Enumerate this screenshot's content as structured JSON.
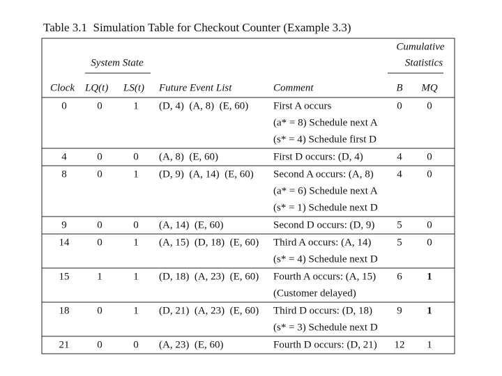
{
  "title": "Table 3.1  Simulation Table for Checkout Counter (Example 3.3)",
  "header": {
    "group_system": "System State",
    "group_cumulative": [
      "Cumulative",
      "Statistics"
    ],
    "columns": [
      "Clock",
      "LQ(t)",
      "LS(t)",
      "Future Event List",
      "Comment",
      "B",
      "MQ"
    ]
  },
  "table": {
    "rows": [
      [
        0,
        0,
        1,
        "(D, 4)  (A, 8)  (E, 60)",
        [
          "First A occurs",
          "(a* = 8) Schedule next A",
          "(s* = 4) Schedule first D"
        ],
        0,
        0
      ],
      [
        4,
        0,
        0,
        "(A, 8)  (E, 60)",
        [
          "First D occurs: (D, 4)"
        ],
        4,
        0
      ],
      [
        8,
        0,
        1,
        "(D, 9)  (A, 14)  (E, 60)",
        [
          "Second A occurs: (A, 8)",
          "(a* = 6) Schedule next A",
          "(s* = 1) Schedule next D"
        ],
        4,
        0
      ],
      [
        9,
        0,
        0,
        "(A, 14)  (E, 60)",
        [
          "Second D occurs: (D, 9)"
        ],
        5,
        0
      ],
      [
        14,
        0,
        1,
        "(A, 15)  (D, 18)  (E, 60)",
        [
          "Third A occurs: (A, 14)",
          "(s* = 4) Schedule next D"
        ],
        5,
        0
      ],
      [
        15,
        1,
        1,
        "(D, 18)  (A, 23)  (E, 60)",
        [
          "Fourth A occurs: (A, 15)",
          "(Customer delayed)"
        ],
        6,
        1
      ],
      [
        18,
        0,
        1,
        "(D, 21)  (A, 23)  (E, 60)",
        [
          "Third D occurs: (D, 18)",
          "(s* = 3) Schedule next D"
        ],
        9,
        1
      ],
      [
        21,
        0,
        0,
        "(A, 23)  (E, 60)",
        [
          "Fourth D occurs: (D, 21)"
        ],
        12,
        1
      ]
    ]
  }
}
